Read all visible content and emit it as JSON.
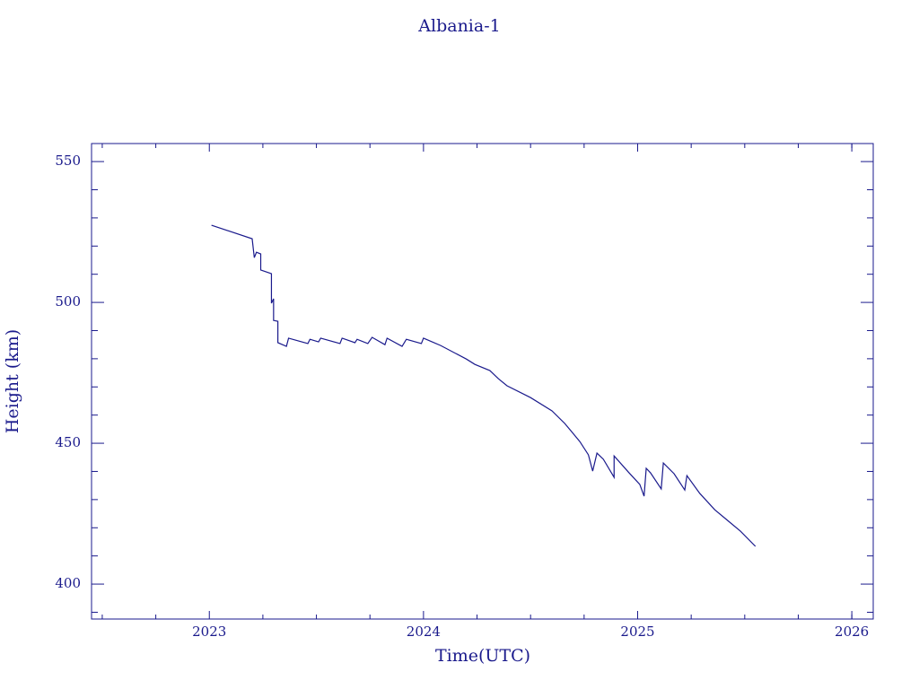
{
  "chart_data": {
    "type": "line",
    "title": "Albania-1",
    "x_label": "Time(UTC)",
    "y_label": "Height (km)",
    "color": "#1a1a8c",
    "xlim": [
      2022.45,
      2026.1
    ],
    "ylim": [
      387.6,
      556.4
    ],
    "xticks": [
      2023,
      2024,
      2025,
      2026
    ],
    "yticks": [
      400,
      450,
      500,
      550
    ],
    "xticks_minor": [
      2022.5,
      2022.75,
      2023.25,
      2023.5,
      2023.75,
      2024.25,
      2024.5,
      2024.75,
      2025.25,
      2025.5,
      2025.75,
      2026.0
    ],
    "yticks_minor": [
      390,
      410,
      420,
      430,
      440,
      460,
      470,
      480,
      490,
      510,
      520,
      530,
      540
    ],
    "series": [
      {
        "name": "Albania-1",
        "color": "#1a1a8c",
        "x": [
          2023.01,
          2023.2,
          2023.21,
          2023.22,
          2023.24,
          2023.24,
          2023.29,
          2023.29,
          2023.3,
          2023.3,
          2023.32,
          2023.32,
          2023.36,
          2023.37,
          2023.46,
          2023.47,
          2023.51,
          2023.52,
          2023.61,
          2023.62,
          2023.68,
          2023.69,
          2023.74,
          2023.76,
          2023.82,
          2023.83,
          2023.9,
          2023.92,
          2023.99,
          2024.0,
          2024.08,
          2024.2,
          2024.24,
          2024.31,
          2024.35,
          2024.39,
          2024.5,
          2024.6,
          2024.66,
          2024.73,
          2024.77,
          2024.79,
          2024.81,
          2024.84,
          2024.89,
          2024.89,
          2024.96,
          2025.01,
          2025.03,
          2025.04,
          2025.06,
          2025.11,
          2025.12,
          2025.17,
          2025.22,
          2025.23,
          2025.29,
          2025.36,
          2025.42,
          2025.48,
          2025.55
        ],
        "values": [
          527.4,
          522.6,
          515.9,
          517.8,
          517.2,
          511.5,
          510.2,
          499.7,
          501.3,
          493.6,
          493.3,
          485.7,
          484.4,
          487.3,
          485.4,
          486.9,
          486.0,
          487.3,
          485.4,
          487.3,
          485.7,
          486.9,
          485.4,
          487.6,
          485.0,
          487.3,
          484.4,
          486.9,
          485.4,
          487.3,
          484.7,
          479.9,
          478.0,
          475.8,
          472.9,
          470.4,
          466.2,
          461.5,
          457.0,
          450.6,
          445.9,
          440.1,
          446.5,
          444.3,
          437.9,
          445.5,
          439.5,
          435.4,
          431.2,
          441.1,
          439.5,
          433.8,
          443.0,
          439.2,
          433.4,
          438.5,
          432.2,
          426.4,
          422.6,
          418.8,
          413.4
        ]
      }
    ]
  }
}
